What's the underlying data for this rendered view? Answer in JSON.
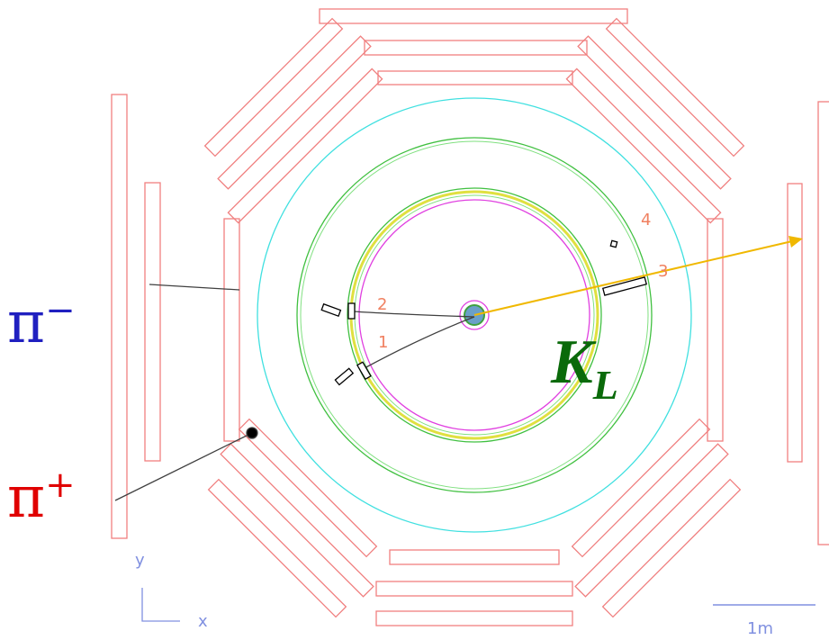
{
  "particles": {
    "pi_minus": {
      "symbol": "π",
      "charge": "−"
    },
    "pi_plus": {
      "symbol": "π",
      "charge": "+"
    },
    "k_long": {
      "symbol": "K",
      "subscript": "L"
    }
  },
  "cluster_labels": [
    "1",
    "2",
    "3",
    "4"
  ],
  "axes": {
    "y": "y",
    "x": "x"
  },
  "scale_bar": "1m"
}
